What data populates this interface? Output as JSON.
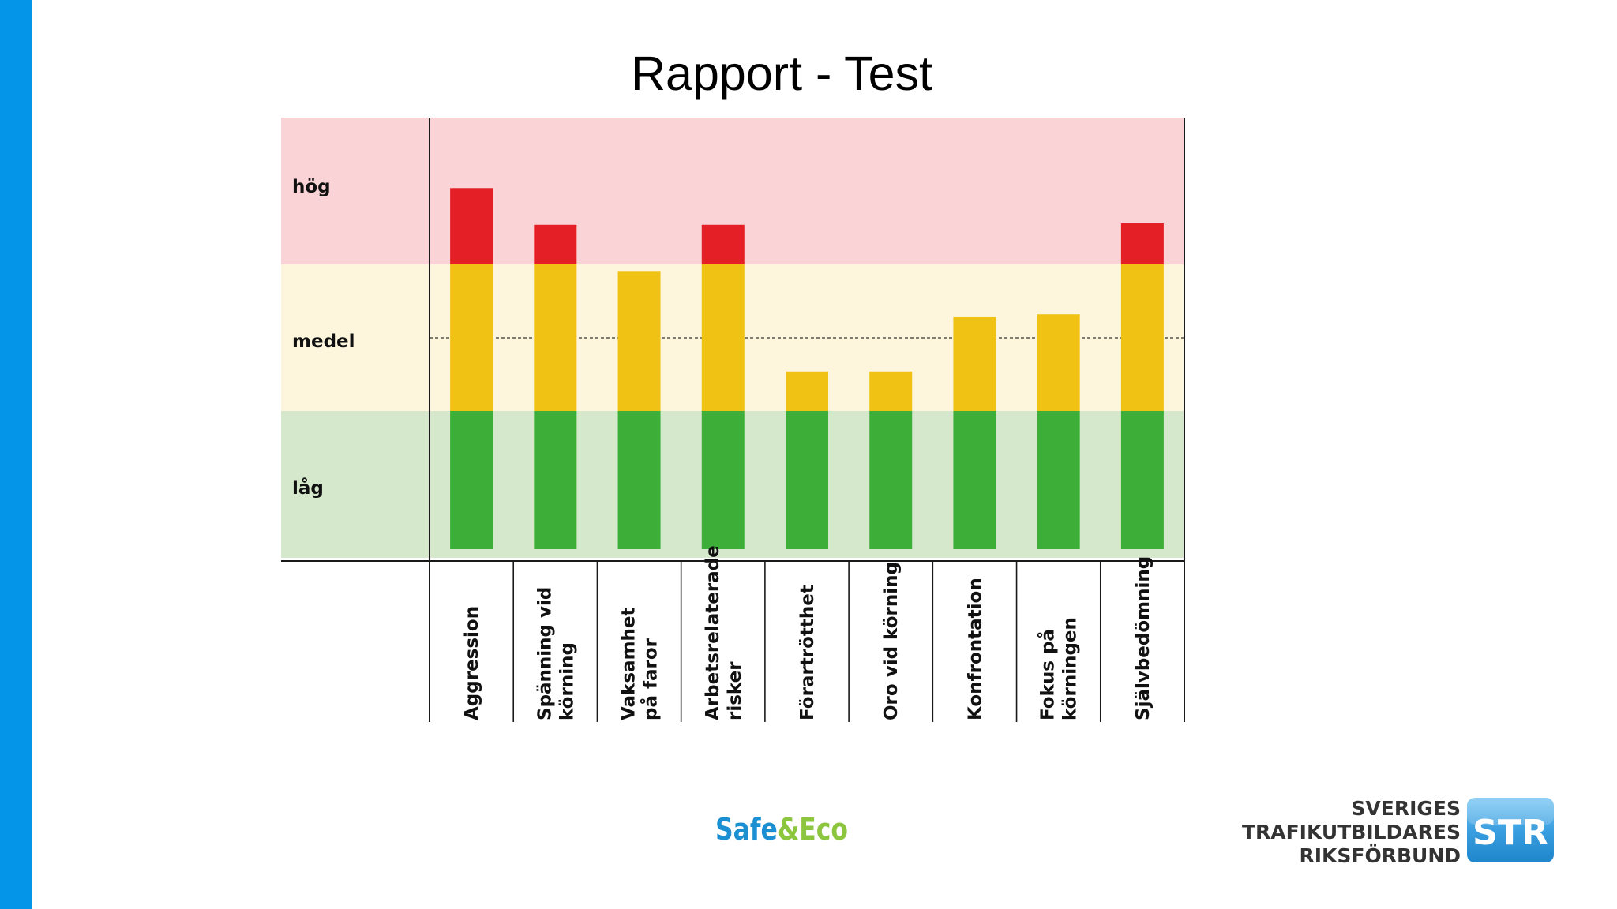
{
  "slide": {
    "title": "Rapport - Test",
    "accent_color": "#0494e8"
  },
  "chart_data": {
    "type": "bar",
    "stacked": true,
    "title": "Rapport - Test",
    "levels": [
      "låg",
      "medel",
      "hög"
    ],
    "level_colors": {
      "låg": "#d5e8cc",
      "medel": "#fdf6dc",
      "hög": "#f9d3d6"
    },
    "medel_reference_line": 1.5,
    "ylim": [
      0,
      3
    ],
    "categories": [
      "Aggression",
      "Spänning vid körning",
      "Vaksamhet på faror",
      "Arbetsrelaterade risker",
      "Förartrötthet",
      "Oro vid körning",
      "Konfrontation",
      "Fokus på körningen",
      "Självbedömning"
    ],
    "category_lines": [
      [
        "Aggression"
      ],
      [
        "Spänning vid",
        "körning"
      ],
      [
        "Vaksamhet",
        "på faror"
      ],
      [
        "Arbetsrelaterade",
        "risker"
      ],
      [
        "Förartrötthet"
      ],
      [
        "Oro vid körning"
      ],
      [
        "Konfrontation"
      ],
      [
        "Fokus på",
        "körningen"
      ],
      [
        "Självbedömning"
      ]
    ],
    "values": [
      2.52,
      2.27,
      1.95,
      2.27,
      1.27,
      1.27,
      1.64,
      1.66,
      2.28
    ],
    "series": [
      {
        "name": "låg",
        "color": "#3dae37",
        "values": [
          1,
          1,
          1,
          1,
          1,
          1,
          1,
          1,
          1
        ]
      },
      {
        "name": "medel",
        "color": "#f0c214",
        "values": [
          1,
          1,
          0.95,
          1,
          0.27,
          0.27,
          0.64,
          0.66,
          1
        ]
      },
      {
        "name": "hög",
        "color": "#e42026",
        "values": [
          0.52,
          0.27,
          0,
          0.27,
          0,
          0,
          0,
          0,
          0.28
        ]
      }
    ]
  },
  "logos": {
    "safeeco": {
      "part1": "Safe",
      "part2": "&",
      "part3": "Eco",
      "color1": "#1b8fd2",
      "color2": "#8cc63f"
    },
    "str": {
      "line1": "SVERIGES",
      "line2": "TRAFIKUTBILDARES",
      "line3": "RIKSFÖRBUND",
      "badge": "STR",
      "badge_color": "#3a9fe0"
    }
  }
}
